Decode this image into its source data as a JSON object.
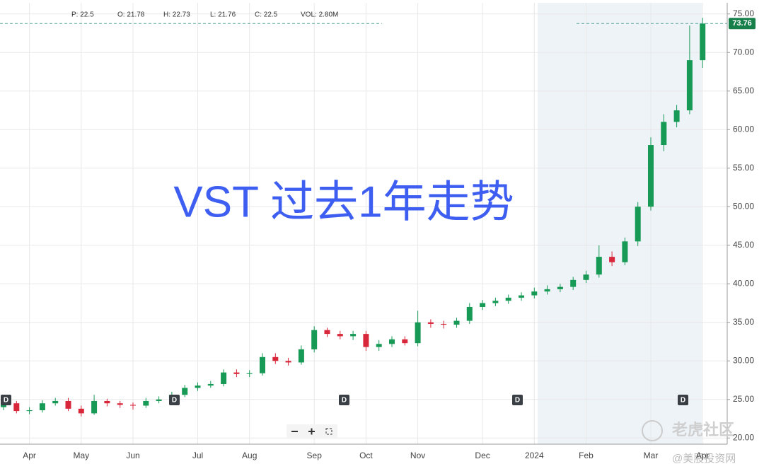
{
  "chart_data": {
    "type": "candlestick",
    "title": "VST 过去1年走势",
    "stats": [
      "P: 22.5",
      "O: 21.78",
      "H: 22.73",
      "L: 21.76",
      "C: 22.5",
      "VOL: 2.80M"
    ],
    "event_label": "D",
    "watermarks": [
      "老虎社区",
      "@美股投资网"
    ],
    "categories": [
      null,
      null,
      "Apr",
      null,
      null,
      null,
      "May",
      null,
      null,
      null,
      "Jun",
      null,
      null,
      null,
      null,
      "Jul",
      null,
      null,
      null,
      "Aug",
      null,
      null,
      null,
      null,
      "Sep",
      null,
      null,
      null,
      "Oct",
      null,
      null,
      null,
      "Nov",
      null,
      null,
      null,
      null,
      "Dec",
      null,
      null,
      null,
      "2024",
      null,
      null,
      null,
      "Feb",
      null,
      null,
      null,
      null,
      "Mar",
      null,
      null,
      null,
      "Apr"
    ],
    "open": [
      24.0,
      24.5,
      23.5,
      23.6,
      24.5,
      24.8,
      23.8,
      23.2,
      24.8,
      24.5,
      24.3,
      24.2,
      24.8,
      25.0,
      25.6,
      26.5,
      26.8,
      27.0,
      28.5,
      28.3,
      28.4,
      30.5,
      30.0,
      29.8,
      31.5,
      34.0,
      33.5,
      33.2,
      33.5,
      31.8,
      32.2,
      32.8,
      32.3,
      35.0,
      34.8,
      34.7,
      35.2,
      37.0,
      37.5,
      37.8,
      38.2,
      38.5,
      39.0,
      39.3,
      39.6,
      40.5,
      41.2,
      43.5,
      42.8,
      45.5,
      50.0,
      58.0,
      61.0,
      62.5,
      69.0
    ],
    "high": [
      24.9,
      24.8,
      24.0,
      24.9,
      25.2,
      25.2,
      24.2,
      25.6,
      25.1,
      24.8,
      24.6,
      25.2,
      25.4,
      26.0,
      26.9,
      27.2,
      27.4,
      28.9,
      28.9,
      28.8,
      31.0,
      31.0,
      30.4,
      32.0,
      34.5,
      34.3,
      33.9,
      33.9,
      33.9,
      32.7,
      33.2,
      33.2,
      36.5,
      35.4,
      35.2,
      35.6,
      37.5,
      37.9,
      38.2,
      38.6,
      38.9,
      39.5,
      39.8,
      40.0,
      40.9,
      41.7,
      45.0,
      44.2,
      46.0,
      50.6,
      59.0,
      62.0,
      63.2,
      73.5,
      74.5
    ],
    "low": [
      23.6,
      23.2,
      23.1,
      23.3,
      24.2,
      23.5,
      22.8,
      23.0,
      24.1,
      23.9,
      23.7,
      23.9,
      24.5,
      24.7,
      25.3,
      26.1,
      26.5,
      26.7,
      27.9,
      27.9,
      28.1,
      29.6,
      29.4,
      29.5,
      31.1,
      33.1,
      32.8,
      32.7,
      31.3,
      31.3,
      31.8,
      32.0,
      31.9,
      34.3,
      34.2,
      34.3,
      34.8,
      36.6,
      37.1,
      37.4,
      37.8,
      38.1,
      38.6,
      38.9,
      39.2,
      40.1,
      40.8,
      42.3,
      42.4,
      44.9,
      49.5,
      57.2,
      60.3,
      62.0,
      68.0
    ],
    "close": [
      24.5,
      23.5,
      23.6,
      24.5,
      24.8,
      23.8,
      23.2,
      24.8,
      24.5,
      24.3,
      24.2,
      24.8,
      25.0,
      25.6,
      26.5,
      26.8,
      27.0,
      28.5,
      28.3,
      28.4,
      30.5,
      30.0,
      29.8,
      31.5,
      34.0,
      33.5,
      33.2,
      33.5,
      31.8,
      32.2,
      32.8,
      32.3,
      35.0,
      34.8,
      34.7,
      35.2,
      37.0,
      37.5,
      37.8,
      38.2,
      38.5,
      39.0,
      39.3,
      39.6,
      40.5,
      41.2,
      43.5,
      42.8,
      45.5,
      50.0,
      58.0,
      61.0,
      62.5,
      69.0,
      73.76
    ],
    "up_color": "#179a56",
    "down_color": "#d8263a",
    "last_price": 73.76,
    "last_price_color": "#17804a",
    "ylim": [
      19.2,
      75.8
    ],
    "yticks": [
      {
        "value": 20,
        "label": "20.00"
      },
      {
        "value": 25,
        "label": "25.00"
      },
      {
        "value": 30,
        "label": "30.00"
      },
      {
        "value": 35,
        "label": "35.00"
      },
      {
        "value": 40,
        "label": "40.00"
      },
      {
        "value": 45,
        "label": "45.00"
      },
      {
        "value": 50,
        "label": "50.00"
      },
      {
        "value": 55,
        "label": "55.00"
      },
      {
        "value": 60,
        "label": "60.00"
      },
      {
        "value": 65,
        "label": "65.00"
      },
      {
        "value": 70,
        "label": "70.00"
      },
      {
        "value": 75,
        "label": "75.00"
      }
    ],
    "grid": true
  }
}
